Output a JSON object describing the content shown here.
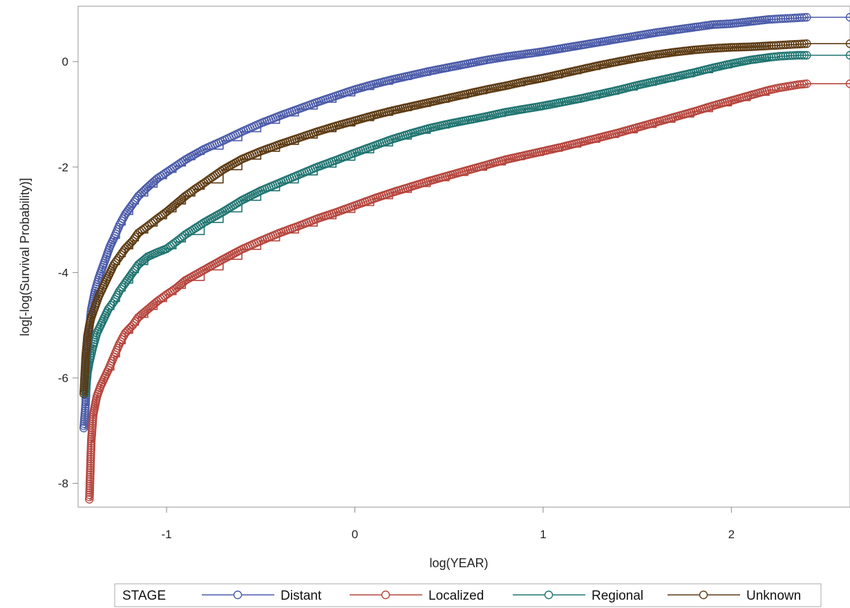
{
  "chart_data": {
    "type": "line",
    "xlabel": "log(YEAR)",
    "ylabel": "log[-log(Survival Probability)]",
    "xlim": [
      -1.47,
      2.63
    ],
    "ylim": [
      -8.45,
      1.05
    ],
    "x_ticks": [
      {
        "value": -1,
        "label": "-1"
      },
      {
        "value": 0,
        "label": "0"
      },
      {
        "value": 1,
        "label": "1"
      },
      {
        "value": 2,
        "label": "2"
      }
    ],
    "y_ticks": [
      {
        "value": 0,
        "label": "0"
      },
      {
        "value": -2,
        "label": "-2"
      },
      {
        "value": -4,
        "label": "-4"
      },
      {
        "value": -6,
        "label": "-6"
      },
      {
        "value": -8,
        "label": "-8"
      }
    ],
    "grid": false,
    "marker": "open-circle",
    "legend": {
      "title": "STAGE",
      "placement": "bottom",
      "entries": [
        "Distant",
        "Localized",
        "Regional",
        "Unknown"
      ]
    },
    "series": [
      {
        "name": "Distant",
        "color": "#4a5aa8",
        "x": [
          -1.44,
          -1.43,
          -1.42,
          -1.41,
          -1.4,
          -1.38,
          -1.36,
          -1.34,
          -1.32,
          -1.3,
          -1.28,
          -1.25,
          -1.22,
          -1.18,
          -1.15,
          -1.1,
          -1.05,
          -1.0,
          -0.95,
          -0.9,
          -0.85,
          -0.8,
          -0.7,
          -0.6,
          -0.5,
          -0.4,
          -0.3,
          -0.2,
          -0.1,
          0.0,
          0.1,
          0.2,
          0.3,
          0.4,
          0.5,
          0.6,
          0.7,
          0.8,
          0.9,
          1.0,
          1.1,
          1.2,
          1.3,
          1.4,
          1.5,
          1.6,
          1.7,
          1.8,
          1.9,
          2.0,
          2.1,
          2.2,
          2.25,
          2.3,
          2.35,
          2.4,
          2.63
        ],
        "y": [
          -6.95,
          -6.5,
          -5.55,
          -5.05,
          -4.7,
          -4.35,
          -4.1,
          -3.9,
          -3.7,
          -3.5,
          -3.35,
          -3.1,
          -2.9,
          -2.7,
          -2.55,
          -2.38,
          -2.22,
          -2.1,
          -1.98,
          -1.86,
          -1.76,
          -1.66,
          -1.5,
          -1.33,
          -1.17,
          -1.03,
          -0.9,
          -0.77,
          -0.65,
          -0.53,
          -0.43,
          -0.34,
          -0.26,
          -0.18,
          -0.11,
          -0.04,
          0.03,
          0.09,
          0.14,
          0.19,
          0.25,
          0.31,
          0.37,
          0.43,
          0.49,
          0.55,
          0.6,
          0.65,
          0.7,
          0.72,
          0.76,
          0.8,
          0.81,
          0.82,
          0.83,
          0.84,
          0.84
        ]
      },
      {
        "name": "Localized",
        "color": "#b5443c",
        "x": [
          -1.41,
          -1.4,
          -1.39,
          -1.37,
          -1.35,
          -1.33,
          -1.31,
          -1.28,
          -1.25,
          -1.22,
          -1.18,
          -1.15,
          -1.1,
          -1.05,
          -1.0,
          -0.95,
          -0.9,
          -0.8,
          -0.7,
          -0.6,
          -0.5,
          -0.4,
          -0.3,
          -0.2,
          -0.1,
          0.0,
          0.1,
          0.2,
          0.3,
          0.4,
          0.5,
          0.6,
          0.7,
          0.8,
          0.9,
          1.0,
          1.1,
          1.2,
          1.3,
          1.4,
          1.5,
          1.6,
          1.7,
          1.8,
          1.9,
          2.0,
          2.1,
          2.2,
          2.25,
          2.3,
          2.35,
          2.4,
          2.63
        ],
        "y": [
          -8.3,
          -7.2,
          -6.7,
          -6.35,
          -6.15,
          -6.0,
          -5.85,
          -5.6,
          -5.35,
          -5.15,
          -5.0,
          -4.85,
          -4.7,
          -4.55,
          -4.42,
          -4.3,
          -4.15,
          -3.95,
          -3.75,
          -3.56,
          -3.4,
          -3.25,
          -3.12,
          -2.98,
          -2.86,
          -2.73,
          -2.6,
          -2.48,
          -2.37,
          -2.26,
          -2.16,
          -2.06,
          -1.96,
          -1.86,
          -1.78,
          -1.7,
          -1.62,
          -1.53,
          -1.44,
          -1.35,
          -1.25,
          -1.15,
          -1.05,
          -0.95,
          -0.84,
          -0.74,
          -0.64,
          -0.54,
          -0.5,
          -0.47,
          -0.44,
          -0.42,
          -0.42
        ]
      },
      {
        "name": "Regional",
        "color": "#1f7470",
        "x": [
          -1.43,
          -1.42,
          -1.41,
          -1.39,
          -1.37,
          -1.35,
          -1.33,
          -1.31,
          -1.28,
          -1.25,
          -1.22,
          -1.18,
          -1.15,
          -1.1,
          -1.05,
          -1.0,
          -0.95,
          -0.9,
          -0.8,
          -0.7,
          -0.6,
          -0.5,
          -0.4,
          -0.3,
          -0.2,
          -0.1,
          0.0,
          0.1,
          0.2,
          0.3,
          0.4,
          0.5,
          0.6,
          0.7,
          0.8,
          0.9,
          1.0,
          1.1,
          1.2,
          1.3,
          1.4,
          1.5,
          1.6,
          1.7,
          1.8,
          1.9,
          2.0,
          2.1,
          2.2,
          2.25,
          2.3,
          2.35,
          2.4,
          2.63
        ],
        "y": [
          -6.3,
          -5.9,
          -5.7,
          -5.4,
          -5.15,
          -5.0,
          -4.85,
          -4.7,
          -4.55,
          -4.35,
          -4.2,
          -4.0,
          -3.85,
          -3.7,
          -3.62,
          -3.55,
          -3.42,
          -3.28,
          -3.05,
          -2.85,
          -2.63,
          -2.45,
          -2.3,
          -2.15,
          -2.0,
          -1.87,
          -1.73,
          -1.6,
          -1.47,
          -1.36,
          -1.26,
          -1.18,
          -1.11,
          -1.04,
          -0.96,
          -0.9,
          -0.84,
          -0.77,
          -0.7,
          -0.62,
          -0.54,
          -0.45,
          -0.37,
          -0.29,
          -0.21,
          -0.12,
          -0.04,
          0.03,
          0.08,
          0.1,
          0.11,
          0.12,
          0.12,
          0.12
        ]
      },
      {
        "name": "Unknown",
        "color": "#5c3a12",
        "x": [
          -1.44,
          -1.43,
          -1.42,
          -1.41,
          -1.4,
          -1.38,
          -1.36,
          -1.34,
          -1.32,
          -1.3,
          -1.28,
          -1.25,
          -1.22,
          -1.18,
          -1.15,
          -1.1,
          -1.05,
          -1.0,
          -0.95,
          -0.9,
          -0.85,
          -0.8,
          -0.7,
          -0.6,
          -0.5,
          -0.4,
          -0.3,
          -0.2,
          -0.1,
          0.0,
          0.1,
          0.2,
          0.3,
          0.4,
          0.5,
          0.6,
          0.7,
          0.8,
          0.9,
          1.0,
          1.1,
          1.2,
          1.3,
          1.4,
          1.5,
          1.6,
          1.7,
          1.8,
          1.9,
          2.0,
          2.1,
          2.2,
          2.25,
          2.3,
          2.35,
          2.4,
          2.63
        ],
        "y": [
          -6.3,
          -5.6,
          -5.2,
          -5.0,
          -4.85,
          -4.65,
          -4.45,
          -4.3,
          -4.15,
          -4.0,
          -3.85,
          -3.7,
          -3.55,
          -3.4,
          -3.25,
          -3.12,
          -2.98,
          -2.85,
          -2.7,
          -2.55,
          -2.42,
          -2.3,
          -2.05,
          -1.85,
          -1.7,
          -1.57,
          -1.45,
          -1.33,
          -1.22,
          -1.12,
          -1.02,
          -0.93,
          -0.85,
          -0.77,
          -0.69,
          -0.61,
          -0.53,
          -0.46,
          -0.38,
          -0.31,
          -0.23,
          -0.15,
          -0.07,
          0.0,
          0.07,
          0.13,
          0.18,
          0.22,
          0.25,
          0.27,
          0.28,
          0.3,
          0.31,
          0.32,
          0.33,
          0.34,
          0.34
        ]
      }
    ]
  }
}
